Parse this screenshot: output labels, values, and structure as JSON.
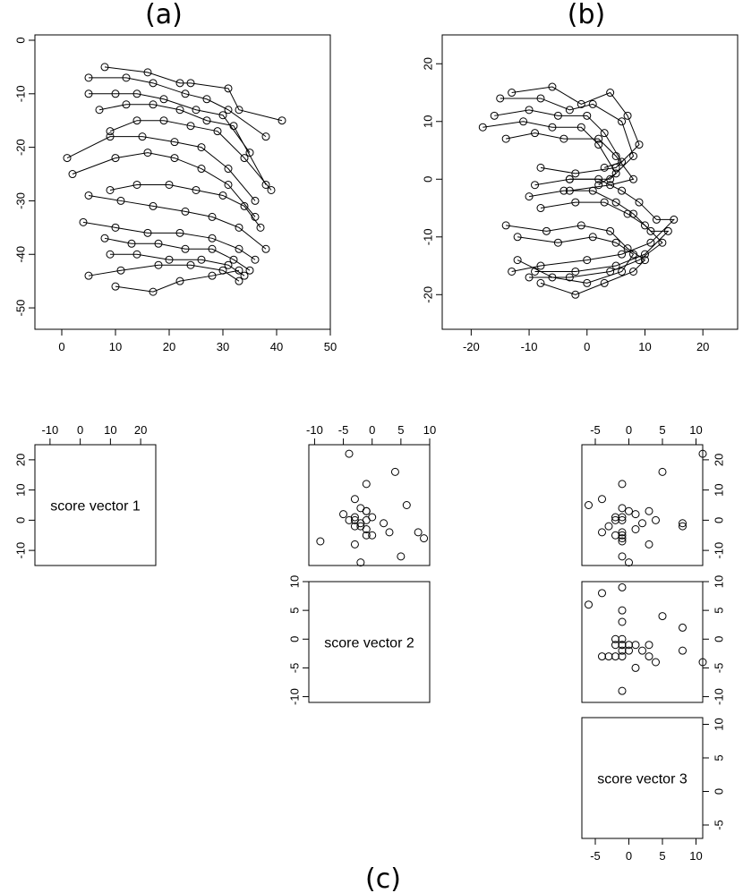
{
  "figure": {
    "labels": {
      "a": "(a)",
      "b": "(b)",
      "c": "(c)"
    }
  },
  "chart_data": [
    {
      "panel": "(a)",
      "type": "line",
      "markers": "open-circle",
      "xlim": [
        -5,
        50
      ],
      "ylim": [
        -54,
        1
      ],
      "x_ticks": [
        0,
        10,
        20,
        30,
        40,
        50
      ],
      "y_ticks": [
        0,
        -10,
        -20,
        -30,
        -40,
        -50
      ],
      "series": [
        {
          "x": [
            8,
            16,
            22,
            24,
            31,
            33,
            41
          ],
          "y": [
            -5,
            -6,
            -8,
            -8,
            -9,
            -13,
            -15
          ]
        },
        {
          "x": [
            5,
            12,
            17,
            23,
            27,
            31,
            38
          ],
          "y": [
            -7,
            -7,
            -8,
            -10,
            -11,
            -13,
            -18
          ]
        },
        {
          "x": [
            5,
            10,
            14,
            19,
            25,
            30,
            35
          ],
          "y": [
            -10,
            -10,
            -10,
            -11,
            -13,
            -14,
            -21
          ]
        },
        {
          "x": [
            7,
            12,
            17,
            22,
            27,
            32,
            38
          ],
          "y": [
            -13,
            -12,
            -12,
            -13,
            -15,
            -16,
            -27
          ]
        },
        {
          "x": [
            9,
            14,
            19,
            24,
            29,
            34,
            39
          ],
          "y": [
            -17,
            -15,
            -15,
            -16,
            -17,
            -22,
            -28
          ]
        },
        {
          "x": [
            1,
            9,
            15,
            21,
            26,
            31,
            36
          ],
          "y": [
            -22,
            -18,
            -18,
            -19,
            -20,
            -24,
            -30
          ]
        },
        {
          "x": [
            2,
            10,
            16,
            21,
            26,
            31,
            36
          ],
          "y": [
            -25,
            -22,
            -21,
            -22,
            -24,
            -27,
            -33
          ]
        },
        {
          "x": [
            9,
            14,
            20,
            25,
            30,
            34,
            37
          ],
          "y": [
            -28,
            -27,
            -27,
            -28,
            -29,
            -31,
            -35
          ]
        },
        {
          "x": [
            5,
            11,
            17,
            23,
            28,
            33,
            38
          ],
          "y": [
            -29,
            -30,
            -31,
            -32,
            -33,
            -35,
            -39
          ]
        },
        {
          "x": [
            4,
            10,
            16,
            22,
            28,
            33,
            36
          ],
          "y": [
            -34,
            -35,
            -36,
            -36,
            -37,
            -39,
            -41
          ]
        },
        {
          "x": [
            8,
            13,
            18,
            23,
            28,
            32,
            35
          ],
          "y": [
            -37,
            -38,
            -38,
            -39,
            -39,
            -41,
            -43
          ]
        },
        {
          "x": [
            9,
            14,
            20,
            26,
            31,
            34
          ],
          "y": [
            -40,
            -40,
            -41,
            -41,
            -42,
            -44
          ]
        },
        {
          "x": [
            5,
            11,
            18,
            24,
            30,
            33
          ],
          "y": [
            -44,
            -43,
            -42,
            -42,
            -43,
            -45
          ]
        },
        {
          "x": [
            10,
            17,
            22,
            28,
            33
          ],
          "y": [
            -46,
            -47,
            -45,
            -44,
            -43
          ]
        }
      ]
    },
    {
      "panel": "(b)",
      "type": "line",
      "markers": "open-circle",
      "xlim": [
        -25,
        26
      ],
      "ylim": [
        -26,
        25
      ],
      "x_ticks": [
        -20,
        -10,
        0,
        10,
        20
      ],
      "y_ticks": [
        20,
        10,
        0,
        -10,
        -20
      ],
      "series": [
        {
          "x": [
            -13,
            -6,
            -1,
            4,
            7,
            9,
            5,
            -2,
            -8
          ],
          "y": [
            15,
            16,
            13,
            15,
            11,
            6,
            2,
            1,
            2
          ]
        },
        {
          "x": [
            -15,
            -8,
            -3,
            1,
            6,
            8,
            4,
            -3
          ],
          "y": [
            14,
            14,
            12,
            13,
            10,
            4,
            0,
            0
          ]
        },
        {
          "x": [
            -16,
            -10,
            -5,
            0,
            3,
            6,
            3
          ],
          "y": [
            11,
            12,
            11,
            11,
            8,
            3,
            2
          ]
        },
        {
          "x": [
            -18,
            -11,
            -6,
            -1,
            2,
            5,
            2
          ],
          "y": [
            9,
            10,
            9,
            9,
            6,
            1,
            -1
          ]
        },
        {
          "x": [
            -14,
            -9,
            -4,
            2,
            5,
            8,
            4,
            -3
          ],
          "y": [
            7,
            8,
            7,
            7,
            4,
            0,
            -1,
            -2
          ]
        },
        {
          "x": [
            -9,
            -3,
            2,
            6,
            9,
            12,
            15,
            11,
            6,
            0,
            -8,
            -13
          ],
          "y": [
            -1,
            0,
            0,
            -2,
            -4,
            -7,
            -7,
            -11,
            -13,
            -14,
            -15,
            -16
          ]
        },
        {
          "x": [
            -10,
            -4,
            1,
            5,
            8,
            11,
            14,
            10,
            5,
            -2,
            -9
          ],
          "y": [
            -3,
            -2,
            -2,
            -4,
            -6,
            -9,
            -9,
            -13,
            -15,
            -16,
            -16
          ]
        },
        {
          "x": [
            -8,
            -2,
            3,
            7,
            10,
            13,
            9,
            4,
            -3,
            -10
          ],
          "y": [
            -5,
            -4,
            -4,
            -6,
            -8,
            -11,
            -14,
            -16,
            -17,
            -17
          ]
        },
        {
          "x": [
            -14,
            -7,
            -1,
            4,
            7,
            10,
            8,
            3,
            -2,
            -8
          ],
          "y": [
            -8,
            -9,
            -8,
            -9,
            -12,
            -14,
            -16,
            -18,
            -20,
            -18
          ]
        },
        {
          "x": [
            -12,
            -5,
            1,
            5,
            8,
            6,
            0,
            -6,
            -12
          ],
          "y": [
            -10,
            -11,
            -10,
            -11,
            -13,
            -16,
            -18,
            -17,
            -14
          ]
        }
      ]
    },
    {
      "panel": "(c)",
      "type": "scatter-matrix",
      "variables": [
        "score vector 1",
        "score vector 2",
        "score vector 3"
      ],
      "ranges": {
        "v1": [
          -15,
          25
        ],
        "v2": [
          -11,
          10
        ],
        "v3": [
          -7,
          11
        ]
      },
      "ticks": {
        "v1": [
          -10,
          0,
          10,
          20
        ],
        "v2": [
          -10,
          -5,
          0,
          5,
          10
        ],
        "v3": [
          -5,
          0,
          5,
          10
        ]
      },
      "points": {
        "v1": [
          22,
          16,
          12,
          7,
          5,
          4,
          3,
          3,
          2,
          1,
          1,
          0,
          0,
          0,
          -1,
          -1,
          -2,
          -2,
          -3,
          -4,
          -4,
          -5,
          -5,
          -6,
          -7,
          -8,
          -12,
          -14
        ],
        "v2": [
          -4,
          4,
          -1,
          -3,
          6,
          -2,
          -1,
          -1,
          -5,
          -3,
          0,
          -1,
          -3,
          -4,
          2,
          -2,
          -2,
          -3,
          -1,
          8,
          3,
          -1,
          0,
          9,
          -9,
          -3,
          5,
          -2
        ],
        "v3": [
          11,
          5,
          -1,
          -4,
          -6,
          -1,
          0,
          3,
          1,
          -2,
          -1,
          -2,
          -1,
          4,
          8,
          2,
          8,
          -3,
          1,
          -4,
          -1,
          -1,
          -2,
          -1,
          -1,
          3,
          -1,
          0
        ]
      }
    }
  ]
}
